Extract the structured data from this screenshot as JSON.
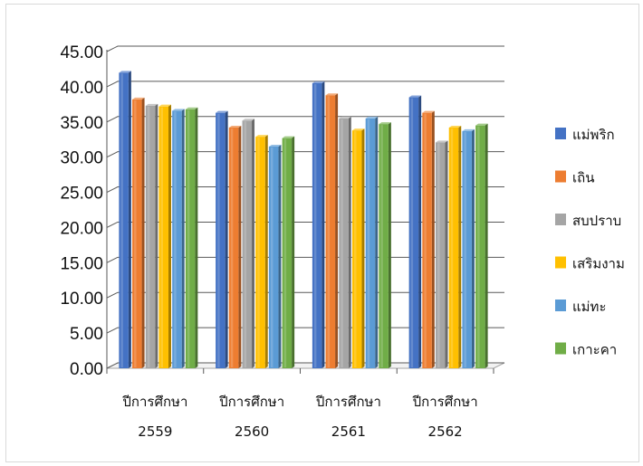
{
  "chart_data": {
    "type": "bar",
    "style": "3d-clustered-column",
    "title": "",
    "xlabel": "",
    "ylabel": "",
    "ylim": [
      0,
      45
    ],
    "y_tick_step": 5,
    "y_tick_format_decimals": 2,
    "grid": true,
    "legend_position": "right",
    "categories": [
      [
        "ปีการศึกษา",
        "2559"
      ],
      [
        "ปีการศึกษา",
        "2560"
      ],
      [
        "ปีการศึกษา",
        "2561"
      ],
      [
        "ปีการศึกษา",
        "2562"
      ]
    ],
    "series": [
      {
        "name": "แม่พริก",
        "color": "#4472C4",
        "values": [
          42.0,
          36.3,
          40.5,
          38.5
        ]
      },
      {
        "name": "เถิน",
        "color": "#ED7D31",
        "values": [
          38.2,
          34.2,
          38.8,
          36.3
        ]
      },
      {
        "name": "สบปราบ",
        "color": "#A5A5A5",
        "values": [
          37.3,
          35.2,
          35.5,
          32.1
        ]
      },
      {
        "name": "เสริมงาม",
        "color": "#FFC000",
        "values": [
          37.2,
          32.9,
          33.8,
          34.2
        ]
      },
      {
        "name": "แม่ทะ",
        "color": "#5B9BD5",
        "values": [
          36.6,
          31.5,
          35.5,
          33.7
        ]
      },
      {
        "name": "เกาะคา",
        "color": "#70AD47",
        "values": [
          36.8,
          32.7,
          34.7,
          34.5
        ]
      }
    ]
  }
}
